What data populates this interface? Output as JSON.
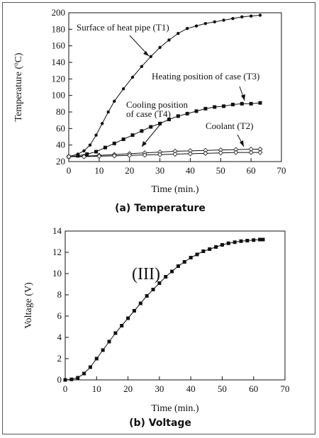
{
  "chart_data": [
    {
      "type": "line",
      "caption": "(a)  Temperature",
      "xlabel": "Time (min.)",
      "ylabel": "Temperature (°C)",
      "xlim": [
        0,
        70
      ],
      "ylim": [
        20,
        200
      ],
      "xticks": [
        0,
        10,
        20,
        30,
        40,
        50,
        60,
        70
      ],
      "yticks": [
        20,
        40,
        60,
        80,
        100,
        120,
        140,
        160,
        180,
        200
      ],
      "grid": false,
      "legend": "none",
      "series": [
        {
          "name": "Surface of heat pipe (T1)",
          "marker": "filled-circle",
          "x": [
            0,
            3,
            5,
            7,
            9,
            11,
            13,
            15,
            18,
            21,
            24,
            27,
            30,
            33,
            36,
            39,
            42,
            45,
            48,
            51,
            54,
            57,
            60,
            63
          ],
          "y": [
            26,
            29,
            33,
            40,
            52,
            66,
            80,
            93,
            108,
            122,
            135,
            147,
            158,
            167,
            175,
            181,
            184,
            187,
            189,
            191,
            193,
            195,
            196,
            197
          ]
        },
        {
          "name": "Heating position of case (T3)",
          "marker": "filled-square",
          "x": [
            0,
            3,
            6,
            9,
            12,
            15,
            18,
            21,
            24,
            27,
            30,
            33,
            36,
            39,
            42,
            45,
            48,
            51,
            54,
            57,
            60,
            63
          ],
          "y": [
            26,
            27,
            29,
            32,
            37,
            42,
            47,
            52,
            57,
            62,
            66,
            71,
            75,
            78,
            81,
            84,
            86,
            87,
            89,
            90,
            90,
            91
          ]
        },
        {
          "name": "Cooling position of case (T4)",
          "marker": "open-diamond",
          "x": [
            0,
            5,
            10,
            15,
            20,
            25,
            30,
            35,
            40,
            45,
            50,
            55,
            60,
            63
          ],
          "y": [
            26,
            26.5,
            27.5,
            28.5,
            29.5,
            30.5,
            31.5,
            32.5,
            33,
            33.5,
            34,
            34.5,
            35,
            35
          ]
        },
        {
          "name": "Coolant (T2)",
          "marker": "open-diamond",
          "x": [
            0,
            5,
            10,
            15,
            20,
            25,
            30,
            35,
            40,
            45,
            50,
            55,
            60,
            63
          ],
          "y": [
            26,
            26,
            26.5,
            27,
            27.5,
            28,
            28.5,
            29,
            29.5,
            30,
            30.5,
            31,
            31,
            31
          ]
        }
      ],
      "annotations": [
        {
          "text": "Surface of heat pipe (T1)"
        },
        {
          "text": "Heating position of case (T3)"
        },
        {
          "text": "Cooling position"
        },
        {
          "text": "of case (T4)"
        },
        {
          "text": "Coolant (T2)"
        }
      ]
    },
    {
      "type": "line",
      "caption": "(b)  Voltage",
      "xlabel": "Time (min.)",
      "ylabel": "Voltage (V)",
      "xlim": [
        0,
        70
      ],
      "ylim": [
        0,
        14
      ],
      "xticks": [
        0,
        10,
        20,
        30,
        40,
        50,
        60,
        70
      ],
      "yticks": [
        0,
        2,
        4,
        6,
        8,
        10,
        12,
        14
      ],
      "grid": false,
      "legend": "none",
      "series": [
        {
          "marker": "filled-square",
          "x": [
            0,
            2,
            4,
            6,
            8,
            10,
            12,
            14,
            16,
            18,
            20,
            22,
            24,
            26,
            28,
            30,
            32,
            34,
            36,
            38,
            40,
            42,
            44,
            46,
            48,
            50,
            52,
            54,
            56,
            58,
            60,
            62,
            63
          ],
          "y": [
            0,
            0.05,
            0.2,
            0.6,
            1.2,
            2.0,
            2.8,
            3.6,
            4.4,
            5.1,
            5.8,
            6.5,
            7.2,
            7.9,
            8.5,
            9.1,
            9.7,
            10.2,
            10.7,
            11.1,
            11.5,
            11.8,
            12.1,
            12.3,
            12.5,
            12.7,
            12.85,
            12.95,
            13.05,
            13.1,
            13.15,
            13.2,
            13.2
          ]
        }
      ],
      "annotations": [
        {
          "text": "(III)"
        }
      ]
    }
  ]
}
